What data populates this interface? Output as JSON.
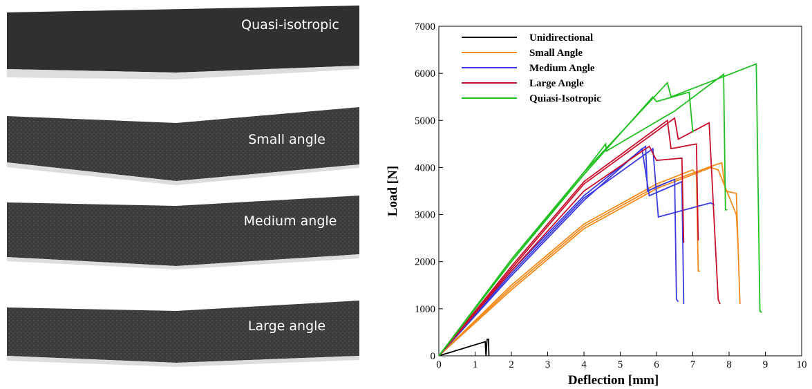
{
  "photos": {
    "labels": [
      "Quasi-isotropic",
      "Small angle",
      "Medium angle",
      "Large angle"
    ]
  },
  "chart_data": {
    "type": "line",
    "xlabel": "Deflection [mm]",
    "ylabel": "Load [N]",
    "xlim": [
      0,
      10
    ],
    "ylim": [
      0,
      7000
    ],
    "xticks": [
      0,
      1,
      2,
      3,
      4,
      5,
      6,
      7,
      8,
      9,
      10
    ],
    "yticks": [
      0,
      1000,
      2000,
      3000,
      4000,
      5000,
      6000,
      7000
    ],
    "legend": "upper left",
    "series": [
      {
        "name": "Unidirectional",
        "color": "#000000",
        "curves": [
          {
            "x": [
              0,
              1.28,
              1.3,
              1.33,
              1.37,
              1.38
            ],
            "values": [
              0,
              300,
              0,
              350,
              350,
              0
            ]
          }
        ]
      },
      {
        "name": "Small Angle",
        "color": "#f28c1e",
        "curves": [
          {
            "x": [
              0,
              2,
              4,
              6,
              7,
              7.1,
              7.15,
              7.2
            ],
            "values": [
              0,
              1500,
              2800,
              3650,
              3950,
              3850,
              1800,
              1800
            ]
          },
          {
            "x": [
              0,
              2,
              4,
              6,
              7.6,
              7.8,
              7.9,
              8.2,
              8.3
            ],
            "values": [
              0,
              1450,
              2750,
              3600,
              4050,
              4100,
              3500,
              3450,
              1100
            ]
          },
          {
            "x": [
              0,
              2,
              4,
              6,
              7.5,
              7.7,
              8.2,
              8.25
            ],
            "values": [
              0,
              1400,
              2700,
              3550,
              4000,
              3950,
              3000,
              2300
            ]
          }
        ]
      },
      {
        "name": "Medium Angle",
        "color": "#3a3ae0",
        "curves": [
          {
            "x": [
              0,
              2,
              4,
              5.7,
              5.75,
              6.5,
              6.55,
              6.6
            ],
            "values": [
              0,
              1800,
              3400,
              4450,
              3500,
              3750,
              1200,
              1150
            ]
          },
          {
            "x": [
              0,
              2,
              4,
              5.9,
              6.05,
              7.5,
              7.6
            ],
            "values": [
              0,
              1750,
              3350,
              4400,
              2950,
              3250,
              3200
            ]
          },
          {
            "x": [
              0,
              2,
              4,
              5.6,
              5.8,
              6.7,
              6.75
            ],
            "values": [
              0,
              1700,
              3300,
              4400,
              3400,
              3700,
              1100
            ]
          }
        ]
      },
      {
        "name": "Large Angle",
        "color": "#c8102e",
        "curves": [
          {
            "x": [
              0,
              2,
              4,
              6.3,
              6.4,
              7.1,
              7.15
            ],
            "values": [
              0,
              1900,
              3700,
              5000,
              4400,
              4500,
              2450
            ]
          },
          {
            "x": [
              0,
              2,
              4,
              6.5,
              6.6,
              7.45,
              7.7,
              7.75
            ],
            "values": [
              0,
              1850,
              3650,
              5050,
              4600,
              4950,
              1200,
              1100
            ]
          },
          {
            "x": [
              0,
              2,
              4,
              5.8,
              6,
              6.7,
              6.75
            ],
            "values": [
              0,
              1800,
              3500,
              4450,
              4150,
              4200,
              2400
            ]
          }
        ]
      },
      {
        "name": "Quiasi-Isotropic",
        "color": "#22c022",
        "curves": [
          {
            "x": [
              0,
              2,
              4,
              4.6,
              4.62,
              6.5,
              7.85,
              7.9,
              7.95
            ],
            "values": [
              0,
              2000,
              3900,
              4500,
              4350,
              5200,
              5980,
              3100,
              3100
            ]
          },
          {
            "x": [
              0,
              2,
              4,
              6.3,
              6.4,
              8.75,
              8.85,
              8.9
            ],
            "values": [
              0,
              2050,
              3900,
              5800,
              5500,
              6200,
              950,
              920
            ]
          },
          {
            "x": [
              0,
              2,
              4,
              5.9,
              6,
              6.9,
              7,
              7.02
            ],
            "values": [
              0,
              2000,
              3850,
              5500,
              5400,
              5600,
              4750,
              4800
            ]
          }
        ]
      }
    ]
  }
}
